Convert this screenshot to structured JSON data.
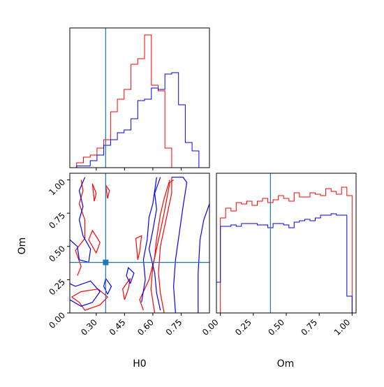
{
  "colors": {
    "red": "#ff0000",
    "blue": "#0000ff",
    "truth": "#1f77b4",
    "axis": "#000000"
  },
  "chart_data": [
    {
      "type": "histogram",
      "panel": "H0 marginal",
      "xlabel": "",
      "ylabel": "",
      "xlim": [
        0.16,
        0.9
      ],
      "ylim": [
        0,
        1.0
      ],
      "truth": 0.35,
      "series": [
        {
          "color": "red",
          "bins": [
            0.16,
            0.196,
            0.232,
            0.268,
            0.304,
            0.34,
            0.376,
            0.412,
            0.448,
            0.484,
            0.52,
            0.556,
            0.592,
            0.628,
            0.664,
            0.7,
            0.736,
            0.772,
            0.808,
            0.844,
            0.88
          ],
          "values": [
            0,
            0.035,
            0.075,
            0.09,
            0.14,
            0.2,
            0.4,
            0.49,
            0.56,
            0.74,
            0.78,
            0.95,
            0.59,
            0.55,
            0.14,
            0,
            0,
            0,
            0,
            0
          ]
        },
        {
          "color": "blue",
          "bins": [
            0.16,
            0.196,
            0.232,
            0.268,
            0.304,
            0.34,
            0.376,
            0.412,
            0.448,
            0.484,
            0.52,
            0.556,
            0.592,
            0.628,
            0.664,
            0.7,
            0.736,
            0.772,
            0.808,
            0.844,
            0.88
          ],
          "values": [
            0,
            0.012,
            0.012,
            0.05,
            0.09,
            0.16,
            0.2,
            0.25,
            0.27,
            0.35,
            0.48,
            0.49,
            0.57,
            0.56,
            0.67,
            0.68,
            0.45,
            0.18,
            0.12,
            0
          ]
        }
      ]
    },
    {
      "type": "contour",
      "panel": "H0 vs Om",
      "xlabel": "H0",
      "ylabel": "Om",
      "xlim": [
        0.16,
        0.9
      ],
      "ylim": [
        0.0,
        1.05
      ],
      "xticks": [
        "0.30",
        "0.45",
        "0.60",
        "0.75"
      ],
      "yticks": [
        "0.00",
        "0.25",
        "0.50",
        "0.75",
        "1.00"
      ],
      "truth": [
        0.35,
        0.38
      ],
      "series": [
        {
          "color": "red",
          "lines": [
            [
              [
                0.66,
                0.0
              ],
              [
                0.64,
                0.15
              ],
              [
                0.63,
                0.3
              ],
              [
                0.64,
                0.5
              ],
              [
                0.67,
                0.7
              ],
              [
                0.7,
                0.9
              ],
              [
                0.7,
                1.02
              ]
            ],
            [
              [
                0.61,
                0.0
              ],
              [
                0.59,
                0.18
              ],
              [
                0.6,
                0.35
              ],
              [
                0.63,
                0.55
              ],
              [
                0.66,
                0.75
              ],
              [
                0.69,
                0.98
              ],
              [
                0.71,
                1.0
              ]
            ],
            [
              [
                0.55,
                0.02
              ],
              [
                0.53,
                0.1
              ],
              [
                0.58,
                0.25
              ],
              [
                0.61,
                0.42
              ],
              [
                0.62,
                0.56
              ],
              [
                0.64,
                0.74
              ],
              [
                0.66,
                0.86
              ],
              [
                0.69,
                1.0
              ]
            ],
            [
              [
                0.2,
                0.28
              ],
              [
                0.22,
                0.35
              ],
              [
                0.19,
                0.47
              ],
              [
                0.24,
                0.56
              ],
              [
                0.24,
                0.7
              ],
              [
                0.21,
                0.82
              ],
              [
                0.23,
                0.92
              ],
              [
                0.22,
                1.0
              ]
            ],
            [
              [
                0.17,
                0.12
              ],
              [
                0.21,
                0.08
              ],
              [
                0.24,
                0.02
              ],
              [
                0.32,
                0.06
              ],
              [
                0.36,
                0.12
              ],
              [
                0.31,
                0.18
              ],
              [
                0.22,
                0.16
              ],
              [
                0.17,
                0.12
              ]
            ],
            [
              [
                0.3,
                0.45
              ],
              [
                0.32,
                0.53
              ],
              [
                0.28,
                0.62
              ],
              [
                0.26,
                0.55
              ],
              [
                0.3,
                0.45
              ]
            ],
            [
              [
                0.29,
                0.84
              ],
              [
                0.3,
                0.9
              ],
              [
                0.28,
                0.97
              ],
              [
                0.29,
                0.84
              ]
            ],
            [
              [
                0.36,
                0.86
              ],
              [
                0.37,
                0.92
              ],
              [
                0.35,
                0.96
              ],
              [
                0.36,
                0.86
              ]
            ],
            [
              [
                0.52,
                0.4
              ],
              [
                0.53,
                0.46
              ],
              [
                0.54,
                0.58
              ],
              [
                0.51,
                0.56
              ],
              [
                0.52,
                0.4
              ]
            ],
            [
              [
                0.45,
                0.1
              ],
              [
                0.47,
                0.18
              ],
              [
                0.48,
                0.26
              ],
              [
                0.44,
                0.18
              ],
              [
                0.45,
                0.1
              ]
            ]
          ]
        },
        {
          "color": "blue",
          "lines": [
            [
              [
                0.72,
                0.0
              ],
              [
                0.71,
                0.2
              ],
              [
                0.72,
                0.4
              ],
              [
                0.74,
                0.6
              ],
              [
                0.76,
                0.8
              ],
              [
                0.78,
                0.98
              ],
              [
                0.76,
                1.02
              ],
              [
                0.7,
                1.02
              ]
            ],
            [
              [
                0.64,
                0.02
              ],
              [
                0.62,
                0.15
              ],
              [
                0.61,
                0.3
              ],
              [
                0.58,
                0.48
              ],
              [
                0.6,
                0.62
              ],
              [
                0.62,
                0.78
              ],
              [
                0.61,
                0.9
              ],
              [
                0.64,
                1.02
              ]
            ],
            [
              [
                0.54,
                0.08
              ],
              [
                0.56,
                0.25
              ],
              [
                0.55,
                0.4
              ],
              [
                0.57,
                0.55
              ],
              [
                0.58,
                0.72
              ],
              [
                0.6,
                0.82
              ],
              [
                0.62,
                1.02
              ]
            ],
            [
              [
                0.84,
                0.0
              ],
              [
                0.84,
                0.3
              ],
              [
                0.85,
                0.55
              ],
              [
                0.87,
                0.7
              ],
              [
                0.9,
                0.82
              ]
            ],
            [
              [
                0.16,
                0.55
              ],
              [
                0.2,
                0.5
              ],
              [
                0.21,
                0.4
              ],
              [
                0.26,
                0.38
              ],
              [
                0.27,
                0.48
              ],
              [
                0.23,
                0.58
              ],
              [
                0.21,
                0.7
              ],
              [
                0.23,
                0.8
              ],
              [
                0.21,
                0.92
              ],
              [
                0.24,
                1.02
              ]
            ],
            [
              [
                0.16,
                0.1
              ],
              [
                0.22,
                0.05
              ],
              [
                0.28,
                0.08
              ],
              [
                0.32,
                0.16
              ],
              [
                0.27,
                0.24
              ],
              [
                0.19,
                0.2
              ],
              [
                0.16,
                0.22
              ]
            ],
            [
              [
                0.36,
                0.14
              ],
              [
                0.38,
                0.2
              ],
              [
                0.35,
                0.26
              ],
              [
                0.34,
                0.2
              ],
              [
                0.36,
                0.14
              ]
            ],
            [
              [
                0.48,
                0.22
              ],
              [
                0.5,
                0.3
              ],
              [
                0.47,
                0.34
              ],
              [
                0.46,
                0.28
              ],
              [
                0.48,
                0.22
              ]
            ]
          ]
        }
      ]
    },
    {
      "type": "histogram",
      "panel": "Om marginal",
      "xlabel": "Om",
      "ylabel": "",
      "xlim": [
        -0.03,
        1.03
      ],
      "ylim": [
        0,
        1.0
      ],
      "xticks": [
        "0.00",
        "0.25",
        "0.50",
        "0.75",
        "1.00"
      ],
      "truth": 0.38,
      "series": [
        {
          "color": "red",
          "bins": [
            -0.03,
            0.0,
            0.04,
            0.08,
            0.12,
            0.16,
            0.2,
            0.24,
            0.28,
            0.32,
            0.36,
            0.4,
            0.44,
            0.48,
            0.52,
            0.56,
            0.6,
            0.64,
            0.68,
            0.72,
            0.76,
            0.8,
            0.84,
            0.88,
            0.92,
            0.96,
            1.0
          ],
          "values": [
            0,
            0.68,
            0.75,
            0.73,
            0.79,
            0.78,
            0.8,
            0.77,
            0.8,
            0.82,
            0.79,
            0.81,
            0.84,
            0.82,
            0.8,
            0.86,
            0.83,
            0.83,
            0.86,
            0.85,
            0.84,
            0.89,
            0.87,
            0.85,
            0.9,
            0.84
          ]
        },
        {
          "color": "blue",
          "bins": [
            -0.03,
            0.0,
            0.04,
            0.08,
            0.12,
            0.16,
            0.2,
            0.24,
            0.28,
            0.32,
            0.36,
            0.4,
            0.44,
            0.48,
            0.52,
            0.56,
            0.6,
            0.64,
            0.68,
            0.72,
            0.76,
            0.8,
            0.84,
            0.88,
            0.92,
            0.96,
            1.0
          ],
          "values": [
            0.22,
            0.62,
            0.62,
            0.63,
            0.62,
            0.64,
            0.64,
            0.64,
            0.63,
            0.63,
            0.61,
            0.64,
            0.64,
            0.63,
            0.61,
            0.65,
            0.66,
            0.67,
            0.66,
            0.68,
            0.7,
            0.7,
            0.71,
            0.7,
            0.7,
            0.12
          ]
        }
      ]
    }
  ]
}
